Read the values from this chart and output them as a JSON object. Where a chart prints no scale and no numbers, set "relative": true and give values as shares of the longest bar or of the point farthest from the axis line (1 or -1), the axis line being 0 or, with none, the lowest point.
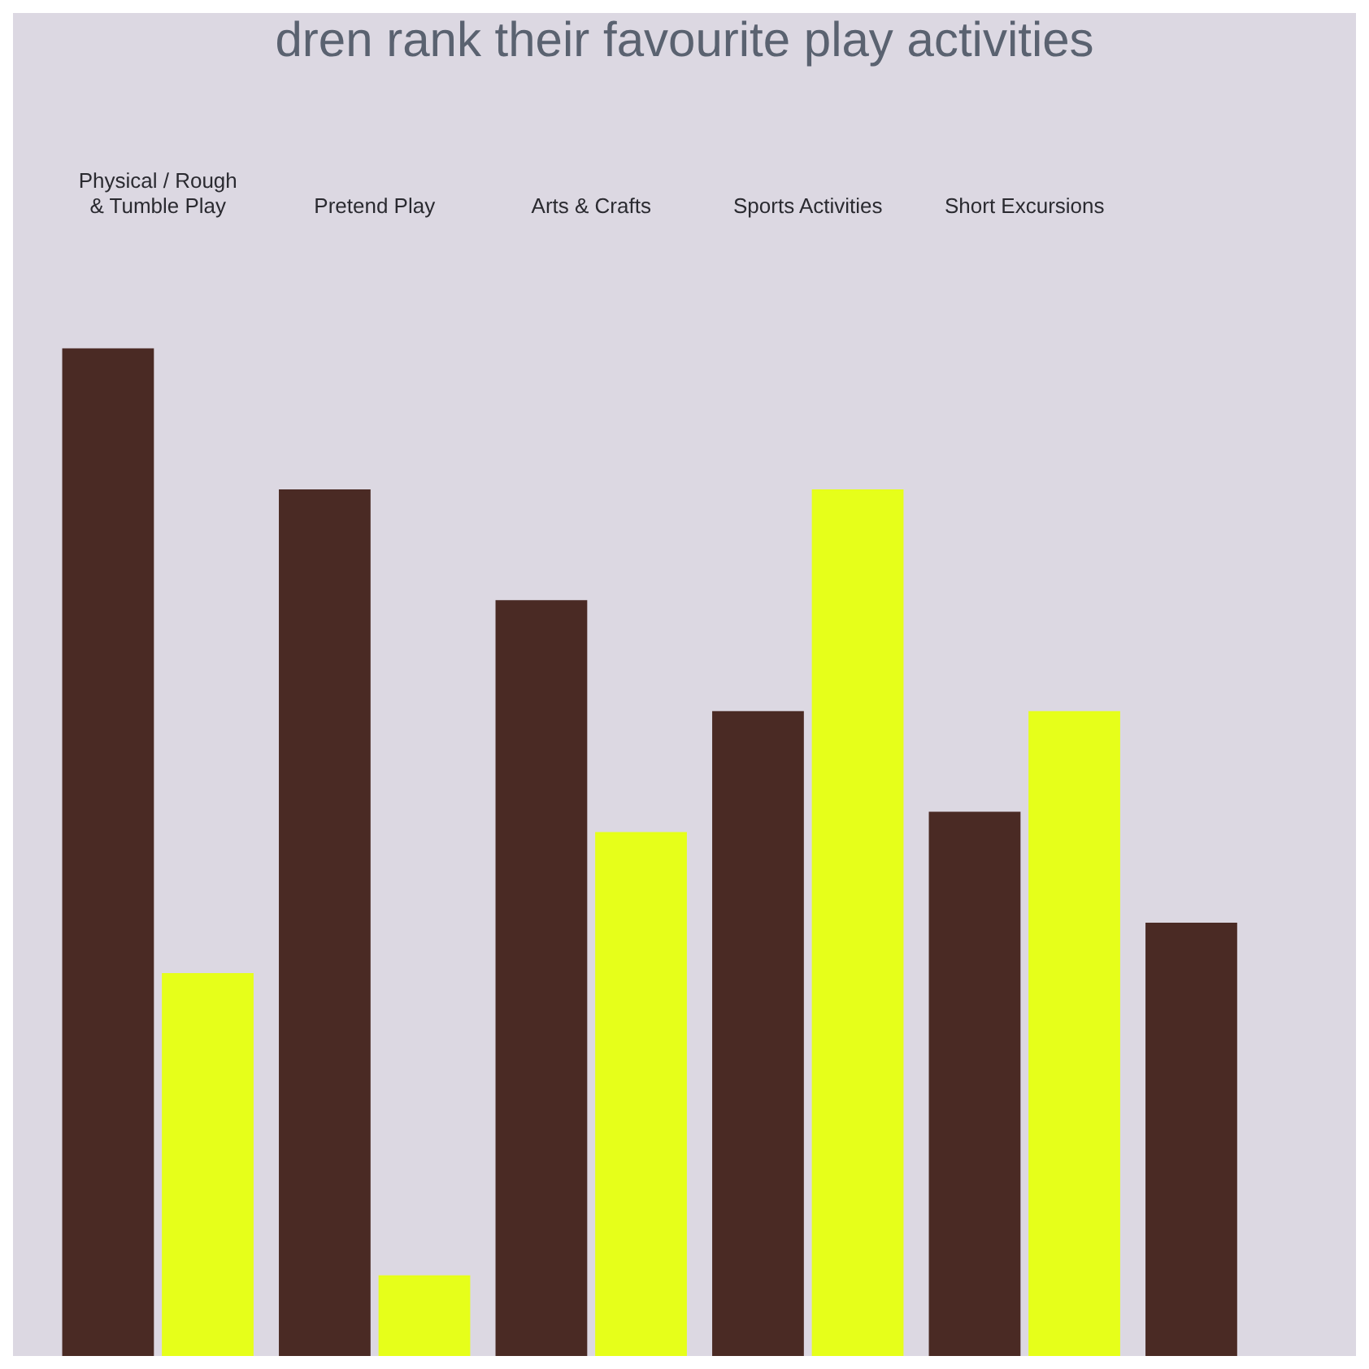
{
  "chart_data": {
    "type": "bar",
    "title": "dren rank their favourite play activities",
    "relative": true,
    "categories": [
      "Physical / Rough & Tumble Play",
      "Pretend Play",
      "Arts & Crafts",
      "Sports Activities",
      "Short Excursions",
      null
    ],
    "series": [
      {
        "color": "#4a2a24",
        "values": [
          1,
          0.86,
          0.75,
          0.64,
          0.54,
          0.43
        ]
      },
      {
        "color": "#e6ff1a",
        "values": [
          0.38,
          0.08,
          0.52,
          0.86,
          0.64,
          null
        ]
      }
    ],
    "grid": false,
    "legend": false
  }
}
